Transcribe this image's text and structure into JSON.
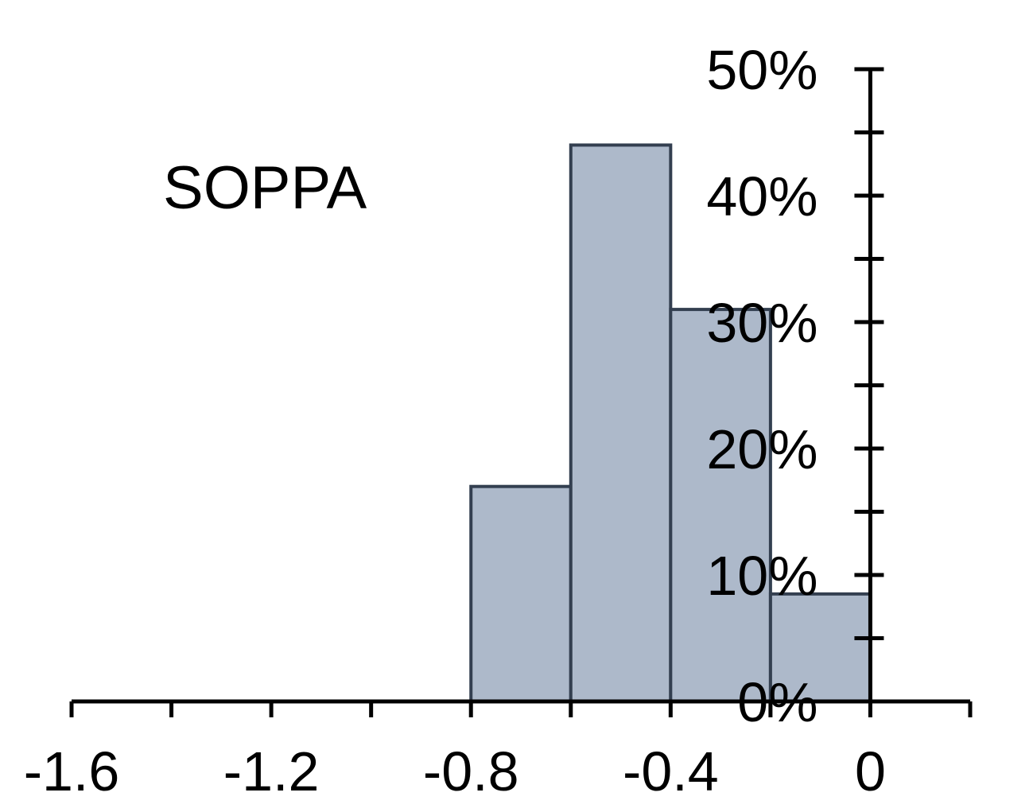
{
  "chart_data": {
    "type": "bar",
    "title": "SOPPA",
    "xlabel": "",
    "ylabel": "",
    "bin_edges": [
      -0.8,
      -0.6,
      -0.4,
      -0.2,
      0
    ],
    "values": [
      17,
      44,
      31,
      8.5
    ],
    "xlim": [
      -1.6,
      0.2
    ],
    "ylim": [
      0,
      50
    ],
    "x_ticks": [
      -1.6,
      -1.2,
      -0.8,
      -0.4,
      0
    ],
    "x_tick_labels": [
      "-1.6",
      "-1.2",
      "-0.8",
      "-0.4",
      "0"
    ],
    "x_minor_tick_step": 0.2,
    "y_ticks": [
      0,
      10,
      20,
      30,
      40,
      50
    ],
    "y_tick_labels": [
      "0%",
      "10%",
      "20%",
      "30%",
      "40%",
      "50%"
    ],
    "y_minor_tick_step": 5,
    "y_axis_position": 0,
    "grid": false,
    "legend": "none",
    "colors": {
      "bar_fill": "#adb9ca",
      "bar_edge": "#333f50",
      "axis": "#000000"
    }
  }
}
